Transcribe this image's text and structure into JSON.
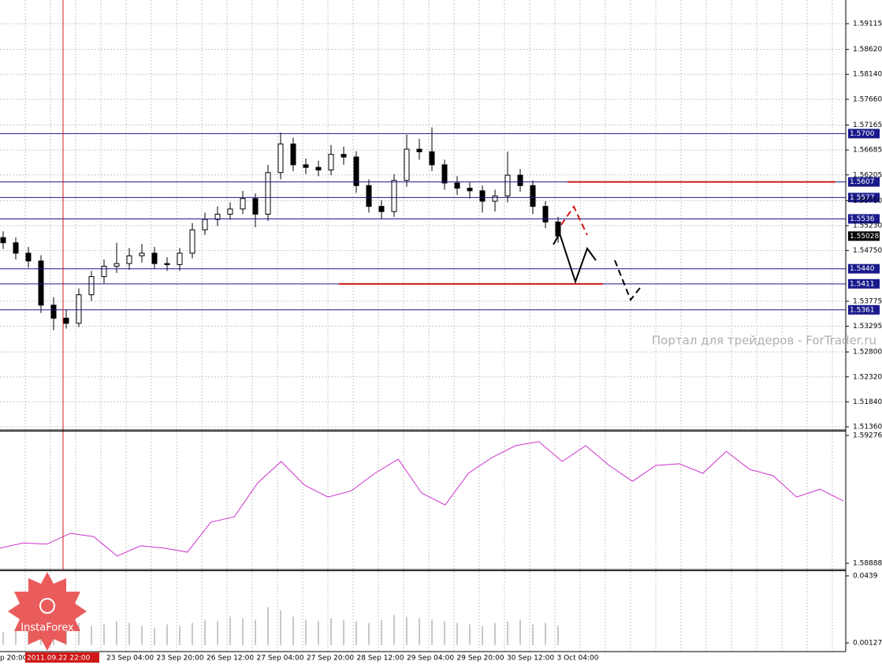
{
  "chart_data": [
    {
      "type": "candlestick",
      "open": [
        1.55,
        1.549,
        1.547,
        1.5455,
        1.537,
        1.5345,
        1.5335,
        1.539,
        1.5425,
        1.5445,
        1.545,
        1.5465,
        1.547,
        1.545,
        1.5448,
        1.547,
        1.5515,
        1.5535,
        1.5545,
        1.5555,
        1.5575,
        1.5545,
        1.5625,
        1.568,
        1.564,
        1.5635,
        1.563,
        1.566,
        1.5655,
        1.56,
        1.556,
        1.555,
        1.561,
        1.567,
        1.5665,
        1.564,
        1.5605,
        1.5595,
        1.559,
        1.557,
        1.558,
        1.562,
        1.56,
        1.556,
        1.553
      ],
      "high": [
        1.5512,
        1.55,
        1.5482,
        1.5466,
        1.5385,
        1.5362,
        1.5402,
        1.5436,
        1.5458,
        1.549,
        1.548,
        1.5488,
        1.5482,
        1.5462,
        1.548,
        1.5528,
        1.5548,
        1.556,
        1.5568,
        1.559,
        1.5585,
        1.564,
        1.5702,
        1.5692,
        1.5652,
        1.5648,
        1.5678,
        1.5675,
        1.5666,
        1.5612,
        1.5572,
        1.5622,
        1.5698,
        1.569,
        1.5712,
        1.565,
        1.5618,
        1.5606,
        1.56,
        1.5592,
        1.5665,
        1.5632,
        1.561,
        1.557,
        1.554
      ],
      "low": [
        1.5478,
        1.5458,
        1.5442,
        1.5355,
        1.5322,
        1.5325,
        1.5328,
        1.5378,
        1.5412,
        1.5432,
        1.5438,
        1.5452,
        1.544,
        1.5436,
        1.5436,
        1.546,
        1.5505,
        1.5522,
        1.5534,
        1.5545,
        1.552,
        1.5532,
        1.5612,
        1.5628,
        1.5622,
        1.5618,
        1.562,
        1.564,
        1.5586,
        1.5548,
        1.5535,
        1.554,
        1.5598,
        1.565,
        1.5628,
        1.5592,
        1.5582,
        1.5575,
        1.5548,
        1.555,
        1.5568,
        1.5588,
        1.5545,
        1.5518,
        1.549
      ],
      "close": [
        1.549,
        1.547,
        1.5455,
        1.537,
        1.5345,
        1.5335,
        1.539,
        1.5425,
        1.5445,
        1.545,
        1.5465,
        1.547,
        1.545,
        1.5448,
        1.547,
        1.5515,
        1.5535,
        1.5545,
        1.5555,
        1.5575,
        1.5545,
        1.5625,
        1.568,
        1.564,
        1.5635,
        1.563,
        1.566,
        1.5655,
        1.56,
        1.556,
        1.555,
        1.561,
        1.567,
        1.5665,
        1.564,
        1.5605,
        1.5595,
        1.559,
        1.557,
        1.558,
        1.562,
        1.56,
        1.556,
        1.553,
        1.5503
      ],
      "ylim": [
        1.513,
        1.5957
      ],
      "yticks": [
        1.59115,
        {
          "value": 1.5862,
          "label": "1.58620"
        },
        {
          "value": 1.5814,
          "label": "1.58140"
        },
        {
          "value": 1.5766,
          "label": "1.57660"
        },
        1.57165,
        1.56685,
        1.56205,
        {
          "value": 1.5571,
          "label": "1.55710"
        },
        {
          "value": 1.5523,
          "label": "1.55230"
        },
        {
          "value": 1.5475,
          "label": "1.54750"
        },
        1.53775,
        1.53295,
        {
          "value": 1.528,
          "label": "1.52800"
        },
        {
          "value": 1.5232,
          "label": "1.52320"
        },
        {
          "value": 1.5184,
          "label": "1.51840"
        },
        {
          "value": 1.5136,
          "label": "1.51360"
        }
      ],
      "levels": [
        {
          "value": 1.57,
          "label": "1.5700"
        },
        1.5607,
        1.5577,
        1.5536,
        {
          "value": 1.544,
          "label": "1.5440"
        },
        1.5411,
        1.5361
      ],
      "level_color": "#1a1a8c",
      "current_price": 1.55028,
      "red_levels": [
        1.5607,
        1.5411
      ],
      "red_color": "#d01818",
      "grid": true,
      "watermark": "Портал для трейдеров - ForTrader.ru"
    },
    {
      "type": "line",
      "color": "#cc33cc",
      "values": [
        1.58934,
        1.5895,
        1.58946,
        1.58979,
        1.58969,
        1.5891,
        1.58941,
        1.58934,
        1.58922,
        1.59013,
        1.59029,
        1.59132,
        1.59197,
        1.59125,
        1.59089,
        1.59108,
        1.59161,
        1.59204,
        1.59101,
        1.59065,
        1.59161,
        1.59209,
        1.59245,
        1.59257,
        1.59197,
        1.59245,
        1.59185,
        1.59137,
        1.59185,
        1.5919,
        1.59161,
        1.59228,
        1.59173,
        1.59154,
        1.59089,
        1.59113,
        1.59077
      ],
      "ylim": [
        1.58869,
        1.59288
      ],
      "yticks": [
        1.59276,
        1.58888
      ]
    },
    {
      "type": "bar",
      "color": "#c8c8c8",
      "values": [
        0.008,
        0.01,
        0.009,
        0.012,
        0.011,
        0.01,
        0.014,
        0.012,
        0.013,
        0.015,
        0.014,
        0.012,
        0.011,
        0.013,
        0.012,
        0.014,
        0.016,
        0.015,
        0.018,
        0.017,
        0.016,
        0.024,
        0.022,
        0.018,
        0.016,
        0.015,
        0.017,
        0.016,
        0.015,
        0.014,
        0.016,
        0.019,
        0.018,
        0.017,
        0.016,
        0.015,
        0.014,
        0.013,
        0.012,
        0.014,
        0.015,
        0.016,
        0.013,
        0.014,
        0.012
      ],
      "ylim": [
        -0.00375,
        0.04691
      ],
      "yticks": [
        0.0439,
        0.00127
      ]
    }
  ],
  "time_labels": [
    "p 20:00",
    "2011.09.22 22:00",
    "23 Sep 04:00",
    "23 Sep 20:00",
    "26 Sep 12:00",
    "27 Sep 04:00",
    "27 Sep 20:00",
    "28 Sep 12:00",
    "29 Sep 04:00",
    "29 Sep 20:00",
    "30 Sep 12:00",
    "3 Oct 04:00"
  ],
  "logo": "InstaForex"
}
